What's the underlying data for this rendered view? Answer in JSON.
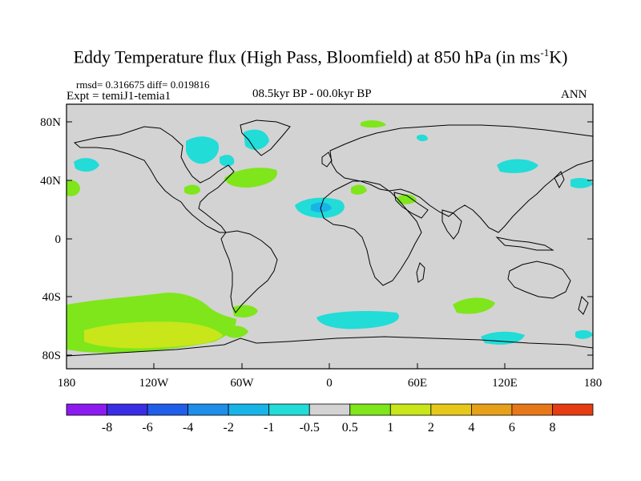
{
  "header": {
    "title_main": "Eddy Temperature flux (High Pass, Bloomfield) at 850 hPa (in ms",
    "title_sup": "-1",
    "title_end": "K)",
    "stats": "rmsd= 0.316675 diff= 0.019816",
    "experiment": "Expt = temiJ1-temia1",
    "period": "08.5kyr BP - 00.0kyr BP",
    "season": "ANN"
  },
  "map": {
    "lat_labels": [
      "80N",
      "40N",
      "0",
      "40S",
      "80S"
    ],
    "lon_labels": [
      "180",
      "120W",
      "60W",
      "0",
      "60E",
      "120E",
      "180"
    ],
    "background_color": "#d3d3d3"
  },
  "colorbar": {
    "labels": [
      "-8",
      "-6",
      "-4",
      "-2",
      "-1",
      "-0.5",
      "0.5",
      "1",
      "2",
      "4",
      "6",
      "8"
    ],
    "colors": [
      "#8c1bf0",
      "#3a2de6",
      "#1f5ee8",
      "#1e8ee8",
      "#18b4e8",
      "#22dcd8",
      "#d3d3d3",
      "#7ee61a",
      "#c8e61a",
      "#e6c81a",
      "#e6a01a",
      "#e6781a",
      "#e63c14"
    ]
  },
  "anomalies": {
    "positive_color": "#7ee61a",
    "strong_positive_color": "#c8e61a",
    "negative_color": "#22dcd8",
    "strong_negative_color": "#18b4e8"
  }
}
